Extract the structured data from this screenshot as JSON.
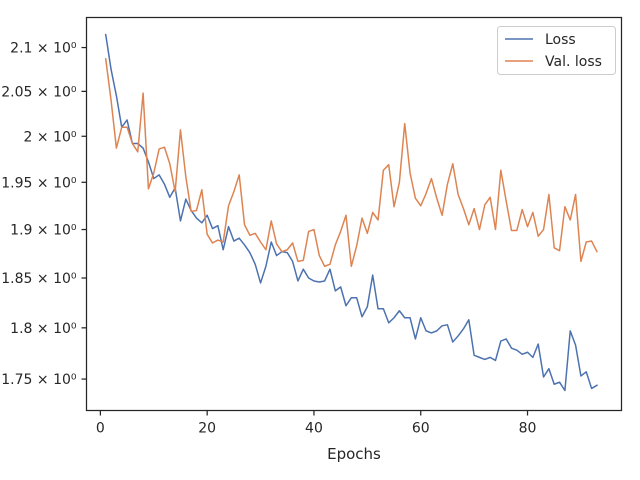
{
  "chart_data": {
    "type": "line",
    "xlabel": "Epochs",
    "ylabel": "",
    "title": "",
    "yscale": "log",
    "xlim": [
      -2.6,
      97.6
    ],
    "ylim": [
      1.72,
      2.135
    ],
    "xticks": [
      0,
      20,
      40,
      60,
      80
    ],
    "xtick_labels": [
      "0",
      "20",
      "40",
      "60",
      "80"
    ],
    "yticks": [
      1.75,
      1.8,
      1.85,
      1.9,
      1.95,
      2.0,
      2.05,
      2.1
    ],
    "ytick_labels": [
      "1.75 × 10⁰",
      "1.8 × 10⁰",
      "1.85 × 10⁰",
      "1.9 × 10⁰",
      "1.95 × 10⁰",
      "2 × 10⁰",
      "2.05 × 10⁰",
      "2.1 × 10⁰"
    ],
    "grid": false,
    "legend_position": "upper right",
    "series": [
      {
        "name": "Loss",
        "color": "#4c72b0",
        "x": [
          1,
          2,
          3,
          4,
          5,
          6,
          7,
          8,
          9,
          10,
          11,
          12,
          13,
          14,
          15,
          16,
          17,
          18,
          19,
          20,
          21,
          22,
          23,
          24,
          25,
          26,
          27,
          28,
          29,
          30,
          31,
          32,
          33,
          34,
          35,
          36,
          37,
          38,
          39,
          40,
          41,
          42,
          43,
          44,
          45,
          46,
          47,
          48,
          49,
          50,
          51,
          52,
          53,
          54,
          55,
          56,
          57,
          58,
          59,
          60,
          61,
          62,
          63,
          64,
          65,
          66,
          67,
          68,
          69,
          70,
          71,
          72,
          73,
          74,
          75,
          76,
          77,
          78,
          79,
          80,
          81,
          82,
          83,
          84,
          85,
          86,
          87,
          88,
          89,
          90,
          91,
          92,
          93
        ],
        "values": [
          2.115,
          2.075,
          2.045,
          2.01,
          2.018,
          1.992,
          1.992,
          1.987,
          1.972,
          1.954,
          1.958,
          1.948,
          1.934,
          1.944,
          1.909,
          1.932,
          1.92,
          1.912,
          1.907,
          1.915,
          1.901,
          1.904,
          1.879,
          1.903,
          1.888,
          1.891,
          1.884,
          1.876,
          1.864,
          1.845,
          1.862,
          1.887,
          1.873,
          1.877,
          1.876,
          1.867,
          1.847,
          1.859,
          1.85,
          1.847,
          1.846,
          1.847,
          1.859,
          1.837,
          1.841,
          1.822,
          1.83,
          1.83,
          1.811,
          1.821,
          1.853,
          1.819,
          1.819,
          1.805,
          1.81,
          1.817,
          1.81,
          1.81,
          1.789,
          1.81,
          1.797,
          1.795,
          1.797,
          1.802,
          1.803,
          1.786,
          1.792,
          1.799,
          1.808,
          1.773,
          1.771,
          1.769,
          1.771,
          1.768,
          1.787,
          1.789,
          1.78,
          1.778,
          1.774,
          1.776,
          1.771,
          1.784,
          1.752,
          1.76,
          1.745,
          1.747,
          1.739,
          1.797,
          1.783,
          1.753,
          1.757,
          1.741,
          1.744
        ]
      },
      {
        "name": "Val. loss",
        "color": "#dd8452",
        "x": [
          1,
          2,
          3,
          4,
          5,
          6,
          7,
          8,
          9,
          10,
          11,
          12,
          13,
          14,
          15,
          16,
          17,
          18,
          19,
          20,
          21,
          22,
          23,
          24,
          25,
          26,
          27,
          28,
          29,
          30,
          31,
          32,
          33,
          34,
          35,
          36,
          37,
          38,
          39,
          40,
          41,
          42,
          43,
          44,
          45,
          46,
          47,
          48,
          49,
          50,
          51,
          52,
          53,
          54,
          55,
          56,
          57,
          58,
          59,
          60,
          61,
          62,
          63,
          64,
          65,
          66,
          67,
          68,
          69,
          70,
          71,
          72,
          73,
          74,
          75,
          76,
          77,
          78,
          79,
          80,
          81,
          82,
          83,
          84,
          85,
          86,
          87,
          88,
          89,
          90,
          91,
          92,
          93
        ],
        "values": [
          2.087,
          2.04,
          1.987,
          2.01,
          2.01,
          1.992,
          1.983,
          2.048,
          1.943,
          1.96,
          1.986,
          1.988,
          1.97,
          1.94,
          2.007,
          1.956,
          1.919,
          1.92,
          1.942,
          1.895,
          1.886,
          1.889,
          1.887,
          1.925,
          1.94,
          1.958,
          1.905,
          1.894,
          1.896,
          1.887,
          1.879,
          1.909,
          1.885,
          1.877,
          1.879,
          1.886,
          1.867,
          1.868,
          1.898,
          1.9,
          1.873,
          1.862,
          1.864,
          1.884,
          1.898,
          1.915,
          1.862,
          1.883,
          1.912,
          1.896,
          1.918,
          1.91,
          1.963,
          1.969,
          1.924,
          1.95,
          2.014,
          1.96,
          1.933,
          1.925,
          1.938,
          1.954,
          1.933,
          1.915,
          1.948,
          1.97,
          1.937,
          1.922,
          1.905,
          1.922,
          1.9,
          1.926,
          1.934,
          1.9,
          1.963,
          1.93,
          1.899,
          1.899,
          1.921,
          1.903,
          1.918,
          1.893,
          1.9,
          1.937,
          1.881,
          1.878,
          1.924,
          1.91,
          1.937,
          1.867,
          1.887,
          1.888,
          1.877
        ]
      }
    ]
  }
}
